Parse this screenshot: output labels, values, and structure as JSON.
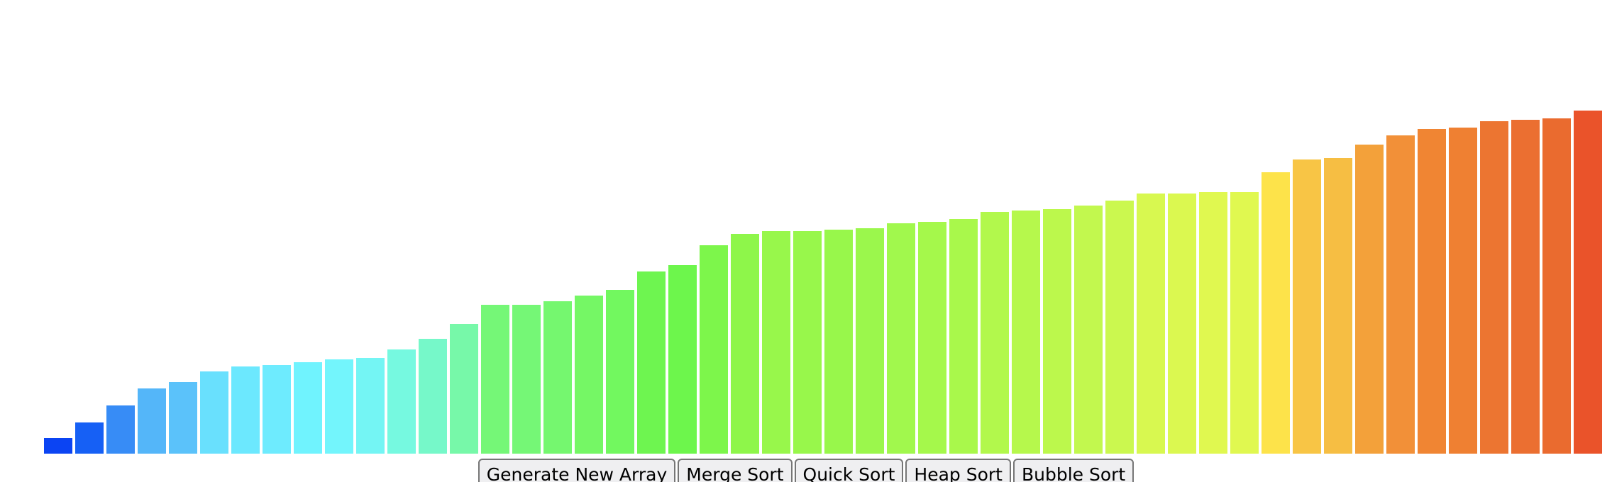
{
  "array_values": [
    22,
    44,
    68,
    92,
    101,
    116,
    123,
    125,
    129,
    133,
    135,
    147,
    162,
    183,
    210,
    210,
    215,
    223,
    231,
    257,
    266,
    294,
    310,
    314,
    314,
    316,
    318,
    325,
    327,
    331,
    341,
    343,
    345,
    350,
    357,
    367,
    367,
    369,
    369,
    397,
    415,
    417,
    436,
    449,
    458,
    460,
    469,
    471,
    473,
    484
  ],
  "bar_colors": [
    "#0b44f3",
    "#1660f5",
    "#378cf6",
    "#54b6f9",
    "#5bc2fa",
    "#69e0fd",
    "#6ce8fe",
    "#6eebfe",
    "#70f3fe",
    "#73f5fc",
    "#74f5f4",
    "#76f9e0",
    "#76f8c9",
    "#77f8a9",
    "#75f777",
    "#75f776",
    "#75f76f",
    "#75f765",
    "#72f85f",
    "#6ef550",
    "#6df64c",
    "#7df64b",
    "#8ef64a",
    "#98f74b",
    "#98f74b",
    "#98f74b",
    "#9bf74c",
    "#a1f84d",
    "#a5f84b",
    "#a9f84b",
    "#b2f84c",
    "#b6f84c",
    "#bcf84c",
    "#c2f84e",
    "#cbf84f",
    "#d8f850",
    "#dbf850",
    "#e0f850",
    "#e0f850",
    "#fde34a",
    "#f8c545",
    "#f6be43",
    "#f3a13a",
    "#f29038",
    "#f08533",
    "#ef8032",
    "#ec7531",
    "#eb6f31",
    "#ea6b2f",
    "#ea532a"
  ],
  "controls": {
    "generate_label": "Generate New Array",
    "merge_label": "Merge Sort",
    "quick_label": "Quick Sort",
    "heap_label": "Heap Sort",
    "bubble_label": "Bubble Sort"
  }
}
